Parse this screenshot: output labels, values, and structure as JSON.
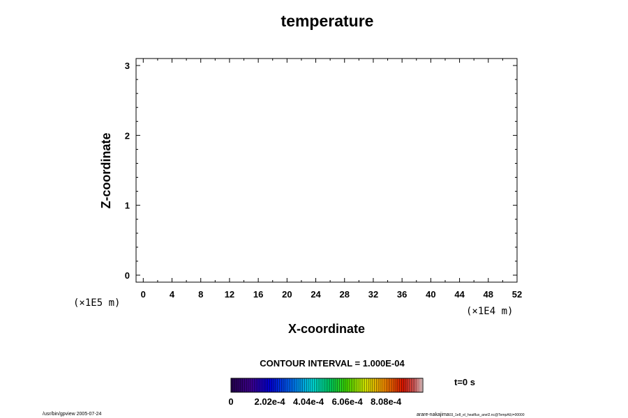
{
  "chart_data": {
    "type": "heatmap",
    "title": "temperature",
    "xlabel": "X-coordinate",
    "ylabel": "Z-coordinate",
    "x_scale_label": "(×1E4 m)",
    "y_scale_label": "(×1E5 m)",
    "xlim": [
      -1,
      52
    ],
    "ylim": [
      -0.1,
      3.1
    ],
    "x_ticks": [
      "0",
      "4",
      "8",
      "12",
      "16",
      "20",
      "24",
      "28",
      "32",
      "36",
      "40",
      "44",
      "48",
      "52"
    ],
    "y_ticks": [
      "0",
      "1",
      "2",
      "3"
    ],
    "contour_interval_label": "CONTOUR INTERVAL = 1.000E-04",
    "time_label": "t=0 s",
    "colorbar": {
      "labels": [
        "0",
        "2.02e-4",
        "4.04e-4",
        "6.06e-4",
        "8.08e-4"
      ],
      "min": 0,
      "max": 0.001
    }
  },
  "footer": {
    "left": "/usr/bin/gpview 2005-07-24",
    "right": "arare-nakajima",
    "right_small": "03_1e8_el_heatflux_anel2.nc@TempAll,t=00000"
  }
}
